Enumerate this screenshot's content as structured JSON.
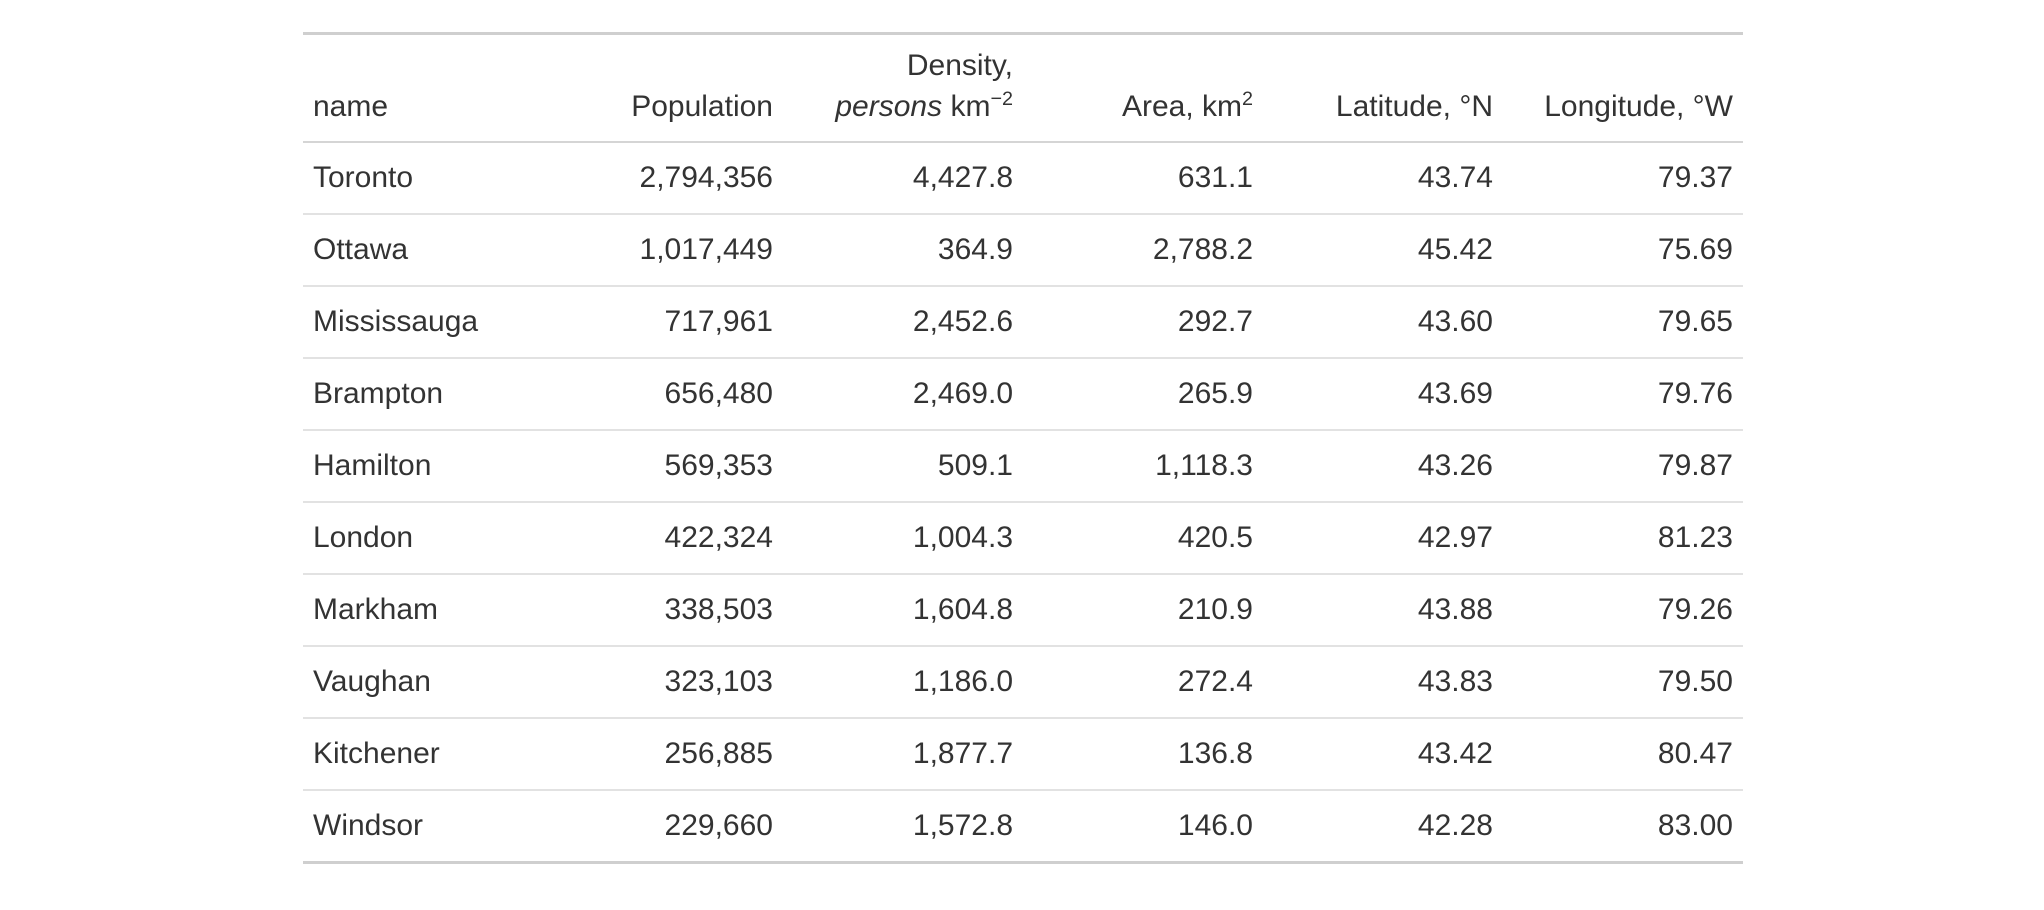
{
  "colors": {
    "background": "#FFFFFF",
    "text": "#333333",
    "border_outer": "#CFCFCF",
    "border_header": "#D5D5D5",
    "border_row": "#E2E2E2"
  },
  "header": {
    "name_label": "name",
    "population_label": "Population",
    "density_line1": "Density,",
    "density_unit_italic": "persons",
    "density_unit": "km",
    "density_sup": "−2",
    "area_label": "Area, km",
    "area_sup": "2",
    "latitude_label": "Latitude, °N",
    "longitude_label": "Longitude, °W"
  },
  "chart_data": {
    "type": "table",
    "title": "",
    "columns": [
      "name",
      "Population",
      "Density, persons km−2",
      "Area, km2",
      "Latitude, °N",
      "Longitude, °W"
    ],
    "rows": [
      {
        "name": "Toronto",
        "population": "2,794,356",
        "density": "4,427.8",
        "area": "631.1",
        "latitude": "43.74",
        "longitude": "79.37"
      },
      {
        "name": "Ottawa",
        "population": "1,017,449",
        "density": "364.9",
        "area": "2,788.2",
        "latitude": "45.42",
        "longitude": "75.69"
      },
      {
        "name": "Mississauga",
        "population": "717,961",
        "density": "2,452.6",
        "area": "292.7",
        "latitude": "43.60",
        "longitude": "79.65"
      },
      {
        "name": "Brampton",
        "population": "656,480",
        "density": "2,469.0",
        "area": "265.9",
        "latitude": "43.69",
        "longitude": "79.76"
      },
      {
        "name": "Hamilton",
        "population": "569,353",
        "density": "509.1",
        "area": "1,118.3",
        "latitude": "43.26",
        "longitude": "79.87"
      },
      {
        "name": "London",
        "population": "422,324",
        "density": "1,004.3",
        "area": "420.5",
        "latitude": "42.97",
        "longitude": "81.23"
      },
      {
        "name": "Markham",
        "population": "338,503",
        "density": "1,604.8",
        "area": "210.9",
        "latitude": "43.88",
        "longitude": "79.26"
      },
      {
        "name": "Vaughan",
        "population": "323,103",
        "density": "1,186.0",
        "area": "272.4",
        "latitude": "43.83",
        "longitude": "79.50"
      },
      {
        "name": "Kitchener",
        "population": "256,885",
        "density": "1,877.7",
        "area": "136.8",
        "latitude": "43.42",
        "longitude": "80.47"
      },
      {
        "name": "Windsor",
        "population": "229,660",
        "density": "1,572.8",
        "area": "146.0",
        "latitude": "42.28",
        "longitude": "83.00"
      }
    ]
  }
}
